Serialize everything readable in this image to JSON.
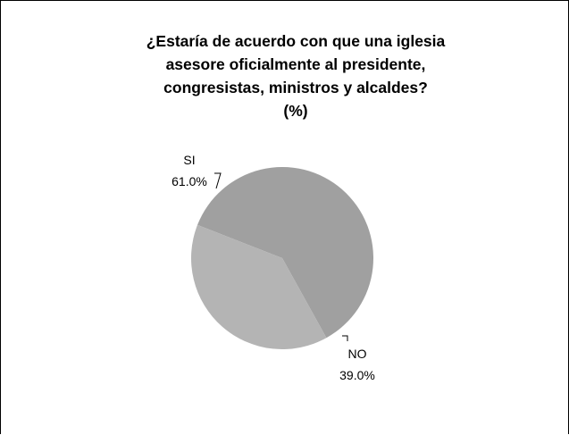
{
  "chart_data": {
    "type": "pie",
    "title_lines": [
      "¿Estaría de acuerdo con que una iglesia",
      "asesore oficialmente al presidente,",
      "congresistas, ministros y alcaldes?",
      "(%)"
    ],
    "slices": [
      {
        "label": "SI",
        "value": 61.0,
        "value_label": "61.0%",
        "color": "#a0a0a0"
      },
      {
        "label": "NO",
        "value": 39.0,
        "value_label": "39.0%",
        "color": "#b4b4b4"
      }
    ]
  }
}
